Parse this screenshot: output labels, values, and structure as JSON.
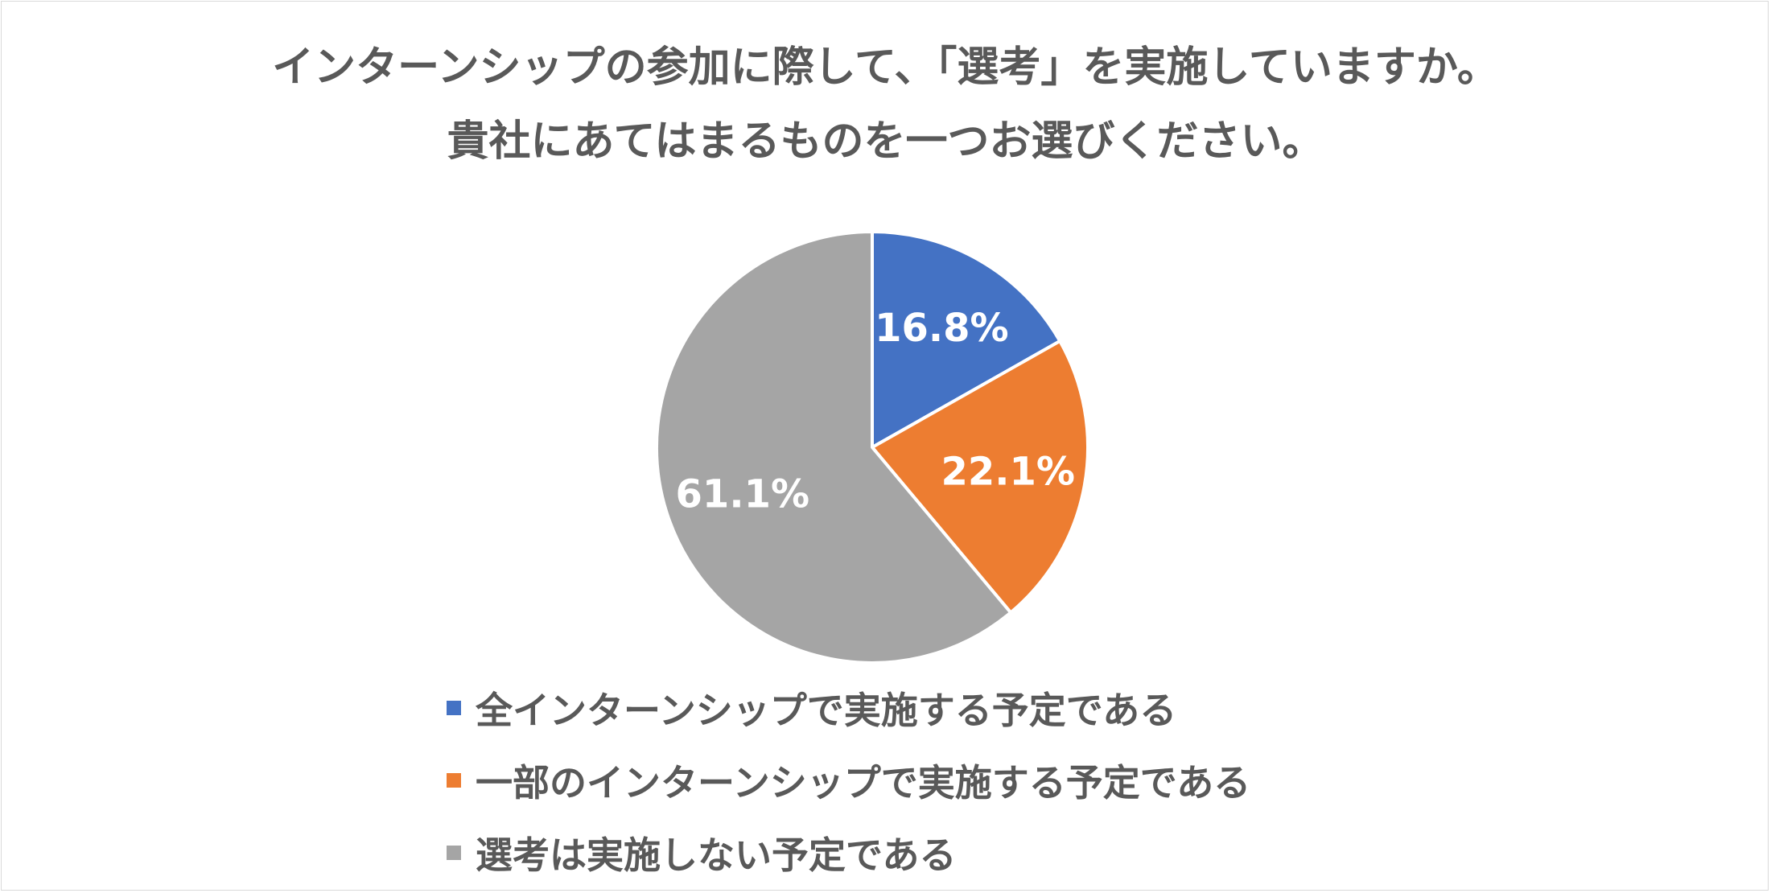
{
  "title": {
    "line1": "インターンシップの参加に際して、「選考」を実施していますか。",
    "line2": "貴社にあてはまるものを一つお選びください。"
  },
  "chart_data": {
    "type": "pie",
    "title": "インターンシップの参加に際して、「選考」を実施していますか。貴社にあてはまるものを一つお選びください。",
    "categories": [
      "全インターンシップで実施する予定である",
      "一部のインターンシップで実施する予定である",
      "選考は実施しない予定である"
    ],
    "values": [
      16.8,
      22.1,
      61.1
    ],
    "labels": [
      "16.8%",
      "22.1%",
      "61.1%"
    ],
    "colors": [
      "#4472c4",
      "#ed7d31",
      "#a5a5a5"
    ],
    "start": "12 o'clock",
    "direction": "clockwise",
    "legend_position": "bottom"
  },
  "legend": {
    "items": [
      {
        "label": "全インターンシップで実施する予定である",
        "color": "#4472c4"
      },
      {
        "label": "一部のインターンシップで実施する予定である",
        "color": "#ed7d31"
      },
      {
        "label": "選考は実施しない予定である",
        "color": "#a5a5a5"
      }
    ]
  }
}
